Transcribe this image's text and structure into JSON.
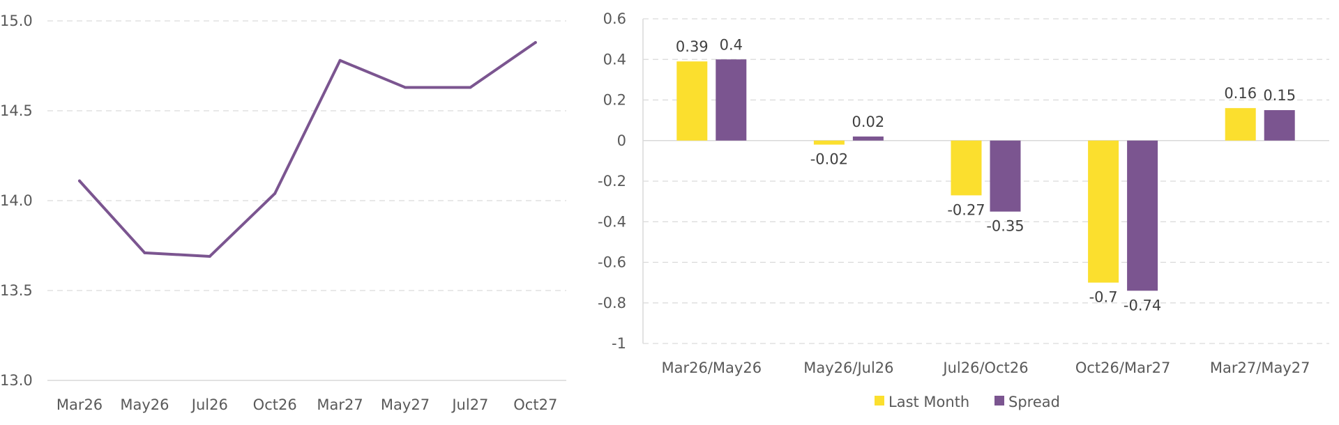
{
  "chart_data": [
    {
      "type": "line",
      "categories": [
        "Mar26",
        "May26",
        "Jul26",
        "Oct26",
        "Mar27",
        "May27",
        "Jul27",
        "Oct27"
      ],
      "series": [
        {
          "values": [
            14.11,
            13.71,
            13.69,
            14.04,
            14.78,
            14.63,
            14.63,
            14.88
          ],
          "color": "#7b5590"
        }
      ],
      "ylim": [
        13.0,
        15.0
      ],
      "yticks": [
        "13.0",
        "13.5",
        "14.0",
        "14.5",
        "15.0"
      ],
      "grid": true
    },
    {
      "type": "bar",
      "categories": [
        "Mar26/May26",
        "May26/Jul26",
        "Jul26/Oct26",
        "Oct26/Mar27",
        "Mar27/May27"
      ],
      "series": [
        {
          "name": "Last Month",
          "values": [
            0.39,
            -0.02,
            -0.27,
            -0.7,
            0.16
          ],
          "labels": [
            "0.39",
            "-0.02",
            "-0.27",
            "-0.7",
            "0.16"
          ],
          "color": "#fbdf2e"
        },
        {
          "name": "Spread",
          "values": [
            0.4,
            0.02,
            -0.35,
            -0.74,
            0.15
          ],
          "labels": [
            "0.4",
            "0.02",
            "-0.35",
            "-0.74",
            "0.15"
          ],
          "color": "#7b5590"
        }
      ],
      "ylim": [
        -1,
        0.6
      ],
      "yticks": [
        "-1",
        "-0.8",
        "-0.6",
        "-0.4",
        "-0.2",
        "0",
        "0.2",
        "0.4",
        "0.6"
      ],
      "grid": true,
      "legend": "bottom"
    }
  ]
}
